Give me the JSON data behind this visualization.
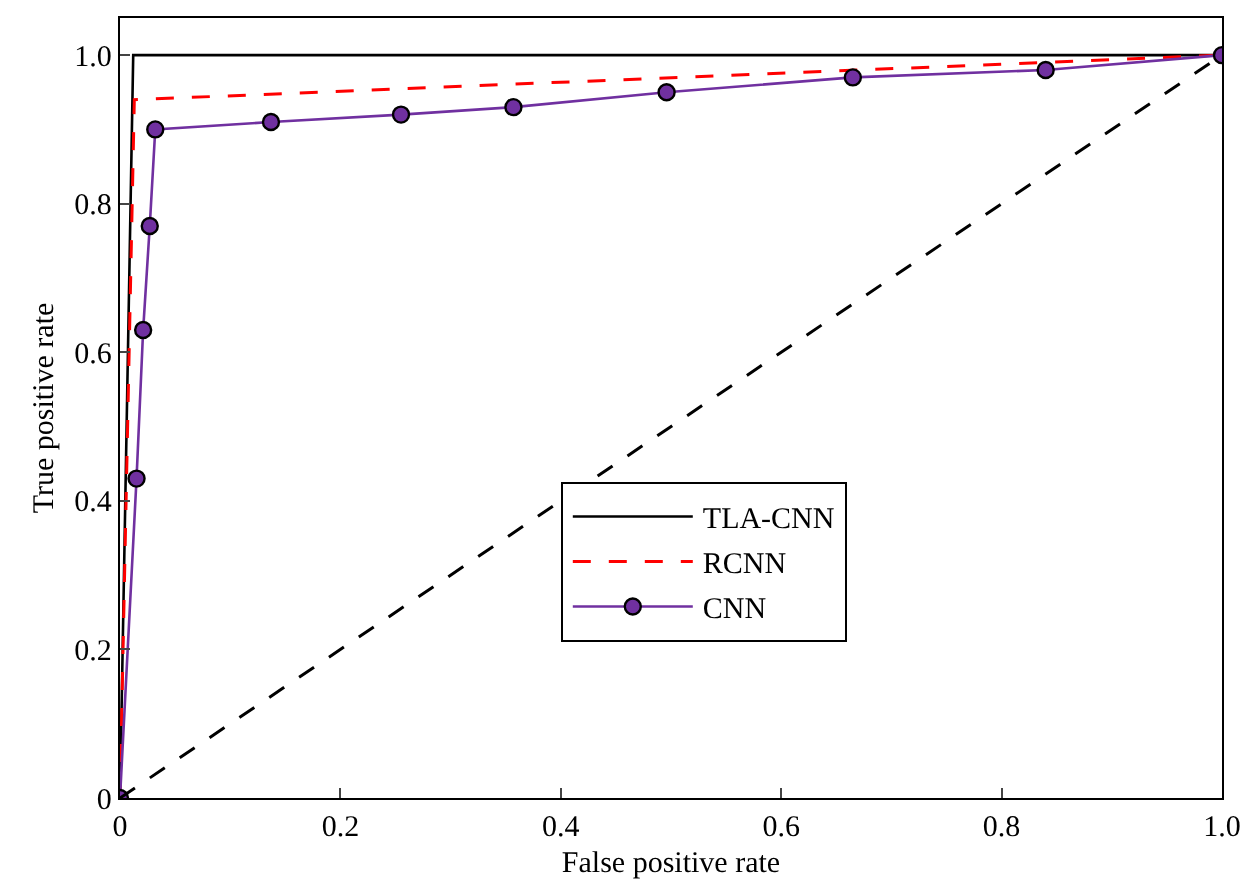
{
  "chart_data": {
    "type": "line",
    "xlabel": "False positive rate",
    "ylabel": "True positive rate",
    "xlim": [
      0,
      1
    ],
    "ylim": [
      0,
      1.05
    ],
    "xticks": [
      {
        "value": 0,
        "label": "0"
      },
      0.2,
      0.4,
      0.6,
      0.8,
      {
        "value": 1,
        "label": "1.0"
      }
    ],
    "yticks": [
      {
        "value": 0,
        "label": "0"
      },
      0.2,
      0.4,
      0.6,
      0.8,
      {
        "value": 1,
        "label": "1.0"
      }
    ],
    "legend": "bottom right",
    "series": [
      {
        "name": "TLA-CNN",
        "color": "#000000",
        "line_style": "solid",
        "x": [
          0,
          0.012,
          1
        ],
        "values": [
          0,
          1.0,
          1.0
        ]
      },
      {
        "name": "RCNN",
        "color": "#ff0000",
        "line_style": "dashed",
        "x": [
          0,
          0.013,
          1
        ],
        "values": [
          0,
          0.94,
          1.0
        ]
      },
      {
        "name": "CNN",
        "color": "#7030a0",
        "line_style": "solid",
        "marker": "circle",
        "x": [
          0,
          0.015,
          0.021,
          0.027,
          0.032,
          0.137,
          0.255,
          0.357,
          0.496,
          0.665,
          0.84,
          1
        ],
        "values": [
          0,
          0.43,
          0.63,
          0.77,
          0.9,
          0.91,
          0.92,
          0.93,
          0.95,
          0.97,
          0.98,
          1.0
        ]
      },
      {
        "color": "#000000",
        "line_style": "dashed",
        "x": [
          0,
          1
        ],
        "values": [
          0,
          1
        ]
      }
    ]
  }
}
